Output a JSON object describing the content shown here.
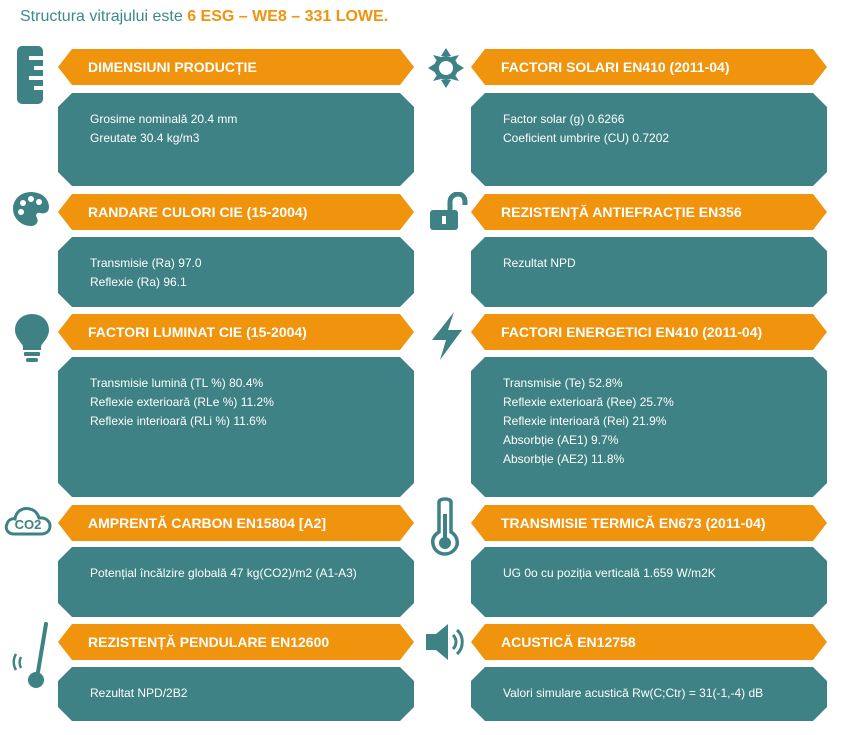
{
  "header": {
    "prefix": "Structura vitrajului este ",
    "highlight": "6 ESG – WE8 – 331 LOWE."
  },
  "sections": {
    "dimensiuni": {
      "title": "DIMENSIUNI PRODUCȚIE",
      "lines": [
        "Grosime nominală 20.4 mm",
        "Greutate 30.4 kg/m3"
      ]
    },
    "solari": {
      "title": "FACTORI SOLARI EN410 (2011-04)",
      "lines": [
        "Factor solar (g) 0.6266",
        "Coeficient umbrire (CU) 0.7202"
      ]
    },
    "culori": {
      "title": "RANDARE CULORI CIE (15-2004)",
      "lines": [
        "Transmisie (Ra) 97.0",
        "Reflexie (Ra) 96.1"
      ]
    },
    "antiefractie": {
      "title": "REZISTENȚĂ ANTIEFRACȚIE EN356",
      "lines": [
        "Rezultat NPD"
      ]
    },
    "luminat": {
      "title": "FACTORI LUMINAT CIE (15-2004)",
      "lines": [
        "Transmisie lumină (TL %) 80.4%",
        "Reflexie exterioară (RLe %) 11.2%",
        "Reflexie interioară (RLi %) 11.6%"
      ]
    },
    "energetici": {
      "title": "FACTORI ENERGETICI EN410 (2011-04)",
      "lines": [
        "Transmisie (Te) 52.8%",
        "Reflexie exterioară (Ree) 25.7%",
        "Reflexie interioară (Rei) 21.9%",
        "Absorbție (AE1) 9.7%",
        "Absorbție (AE2) 11.8%"
      ]
    },
    "carbon": {
      "title": "AMPRENTĂ CARBON EN15804 [A2]",
      "lines": [
        "Potențial încălzire globală 47 kg(CO2)/m2 (A1-A3)"
      ]
    },
    "termica": {
      "title": "TRANSMISIE TERMICĂ EN673 (2011-04)",
      "lines": [
        "UG 0o cu poziția verticală 1.659 W/m2K"
      ]
    },
    "pendulare": {
      "title": "REZISTENȚĂ PENDULARE EN12600",
      "lines": [
        "Rezultat NPD/2B2"
      ]
    },
    "acustica": {
      "title": "ACUSTICĂ EN12758",
      "lines": [
        "Valori simulare acustică Rw(C;Ctr) = 31(-1,-4) dB"
      ]
    }
  },
  "icons": {
    "co2_text": "CO2",
    "color": "#3f8285"
  }
}
